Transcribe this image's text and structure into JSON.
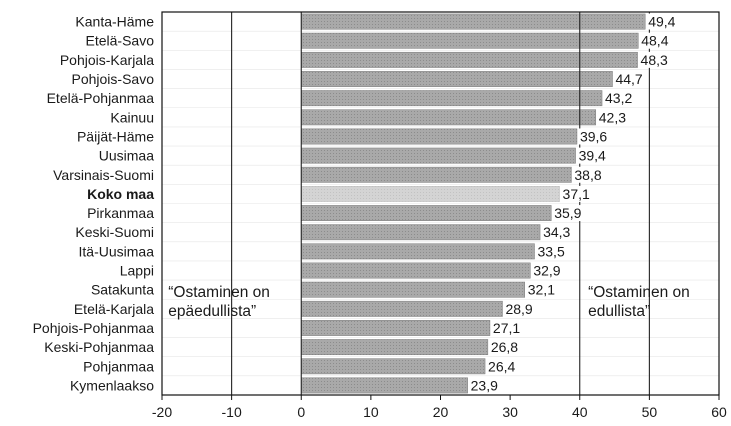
{
  "chart_data": {
    "type": "bar",
    "orientation": "horizontal",
    "categories": [
      "Kanta-Häme",
      "Etelä-Savo",
      "Pohjois-Karjala",
      "Pohjois-Savo",
      "Etelä-Pohjanmaa",
      "Kainuu",
      "Päijät-Häme",
      "Uusimaa",
      "Varsinais-Suomi",
      "Koko maa",
      "Pirkanmaa",
      "Keski-Suomi",
      "Itä-Uusimaa",
      "Lappi",
      "Satakunta",
      "Etelä-Karjala",
      "Pohjois-Pohjanmaa",
      "Keski-Pohjanmaa",
      "Pohjanmaa",
      "Kymenlaakso"
    ],
    "values": [
      49.4,
      48.4,
      48.3,
      44.7,
      43.2,
      42.3,
      39.6,
      39.4,
      38.8,
      37.1,
      35.9,
      34.3,
      33.5,
      32.9,
      32.1,
      28.9,
      27.1,
      26.8,
      26.4,
      23.9
    ],
    "value_labels": [
      "49,4",
      "48,4",
      "48,3",
      "44,7",
      "43,2",
      "42,3",
      "39,6",
      "39,4",
      "38,8",
      "37,1",
      "35,9",
      "34,3",
      "33,5",
      "32,9",
      "32,1",
      "28,9",
      "27,1",
      "26,8",
      "26,4",
      "23,9"
    ],
    "highlight_category": "Koko maa",
    "xlim": [
      -20,
      60
    ],
    "xticks": [
      -20,
      -10,
      0,
      10,
      20,
      30,
      40,
      50,
      60
    ],
    "vertical_gridlines": [
      -10,
      0,
      40,
      50
    ],
    "title": "",
    "xlabel": "",
    "ylabel": "",
    "annotations": [
      {
        "text_lines": [
          "“Ostaminen on",
          "epäedullista”"
        ],
        "position": "left"
      },
      {
        "text_lines": [
          "“Ostaminen on",
          "edullista”"
        ],
        "position": "right"
      }
    ],
    "colors": {
      "bar": "#a9a9a9",
      "highlight_bar": "#d4d4d4",
      "grid": "#222222"
    }
  }
}
